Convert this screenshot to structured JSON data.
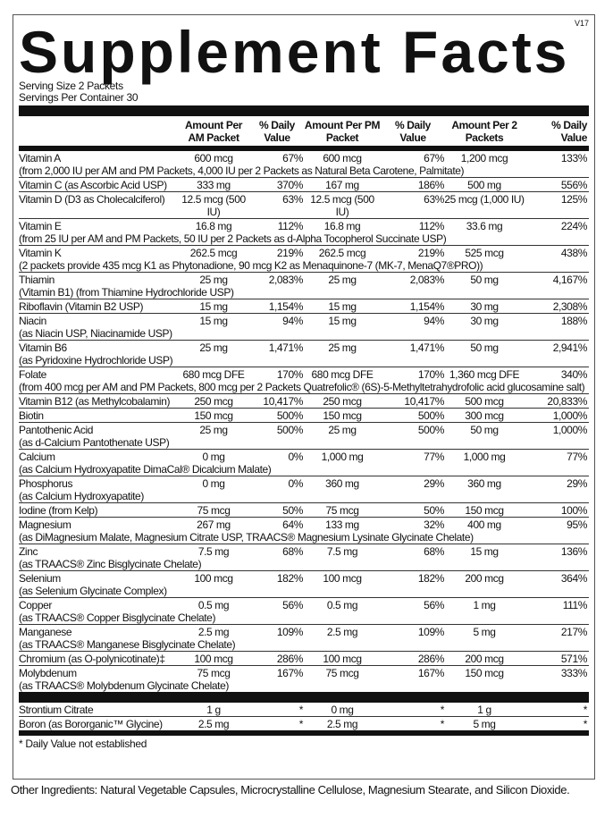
{
  "version": "V17",
  "title": "Supplement Facts",
  "serving_size": "Serving Size 2 Packets",
  "servings_per_container": "Servings Per Container 30",
  "headers": [
    "",
    "Amount Per AM Packet",
    "% Daily Value",
    "Amount Per PM Packet",
    "% Daily Value",
    "Amount Per 2 Packets",
    "% Daily Value"
  ],
  "rows": [
    {
      "name": "Vitamin A",
      "sub": "(from 2,000 IU per AM and PM Packets, 4,000 IU per 2 Packets as Natural Beta Carotene, Palmitate)",
      "v": [
        "600 mcg",
        "67%",
        "600 mcg",
        "67%",
        "1,200 mcg",
        "133%"
      ]
    },
    {
      "name": "Vitamin C (as Ascorbic Acid USP)",
      "sub": "",
      "v": [
        "333 mg",
        "370%",
        "167 mg",
        "186%",
        "500 mg",
        "556%"
      ]
    },
    {
      "name": "Vitamin D (D3 as Cholecalciferol)",
      "sub": "",
      "v": [
        "12.5 mcg (500 IU)",
        "63%",
        "12.5 mcg (500 IU)",
        "63%",
        "25 mcg (1,000 IU)",
        "125%"
      ]
    },
    {
      "name": "Vitamin E",
      "sub": "(from 25 IU per AM and PM Packets, 50 IU per 2 Packets as d-Alpha Tocopherol Succinate USP)",
      "v": [
        "16.8 mg",
        "112%",
        "16.8 mg",
        "112%",
        "33.6 mg",
        "224%"
      ]
    },
    {
      "name": "Vitamin K",
      "sub": "(2 packets provide 435 mcg K1 as Phytonadione, 90 mcg K2 as Menaquinone-7 (MK-7, MenaQ7®PRO))",
      "v": [
        "262.5 mcg",
        "219%",
        "262.5 mcg",
        "219%",
        "525 mcg",
        "438%"
      ]
    },
    {
      "name": "Thiamin",
      "sub": "(Vitamin B1) (from Thiamine Hydrochloride USP)",
      "v": [
        "25 mg",
        "2,083%",
        "25 mg",
        "2,083%",
        "50 mg",
        "4,167%"
      ]
    },
    {
      "name": "Riboflavin (Vitamin B2 USP)",
      "sub": "",
      "v": [
        "15 mg",
        "1,154%",
        "15 mg",
        "1,154%",
        "30 mg",
        "2,308%"
      ]
    },
    {
      "name": "Niacin",
      "sub": "(as Niacin USP, Niacinamide USP)",
      "v": [
        "15 mg",
        "94%",
        "15 mg",
        "94%",
        "30 mg",
        "188%"
      ]
    },
    {
      "name": "Vitamin B6",
      "sub": "(as Pyridoxine Hydrochloride USP)",
      "v": [
        "25 mg",
        "1,471%",
        "25 mg",
        "1,471%",
        "50 mg",
        "2,941%"
      ]
    },
    {
      "name": "Folate",
      "sub": "(from 400 mcg per AM and PM Packets, 800 mcg per 2 Packets Quatrefolic® (6S)-5-Methyltetrahydrofolic acid glucosamine salt)",
      "v": [
        "680 mcg DFE",
        "170%",
        "680 mcg DFE",
        "170%",
        "1,360 mcg DFE",
        "340%"
      ]
    },
    {
      "name": "Vitamin B12 (as Methylcobalamin)",
      "sub": "",
      "v": [
        "250 mcg",
        "10,417%",
        "250 mcg",
        "10,417%",
        "500 mcg",
        "20,833%"
      ]
    },
    {
      "name": "Biotin",
      "sub": "",
      "v": [
        "150 mcg",
        "500%",
        "150 mcg",
        "500%",
        "300 mcg",
        "1,000%"
      ]
    },
    {
      "name": "Pantothenic Acid",
      "sub": "(as d-Calcium Pantothenate USP)",
      "v": [
        "25 mg",
        "500%",
        "25 mg",
        "500%",
        "50 mg",
        "1,000%"
      ]
    },
    {
      "name": "Calcium",
      "sub": "(as Calcium Hydroxyapatite DimaCal® Dicalcium Malate)",
      "v": [
        "0 mg",
        "0%",
        "1,000 mg",
        "77%",
        "1,000 mg",
        "77%"
      ]
    },
    {
      "name": "Phosphorus",
      "sub": "(as Calcium Hydroxyapatite)",
      "v": [
        "0 mg",
        "0%",
        "360 mg",
        "29%",
        "360 mg",
        "29%"
      ]
    },
    {
      "name": "Iodine (from Kelp)",
      "sub": "",
      "v": [
        "75 mcg",
        "50%",
        "75 mcg",
        "50%",
        "150 mcg",
        "100%"
      ]
    },
    {
      "name": "Magnesium",
      "sub": "(as DiMagnesium Malate, Magnesium Citrate USP, TRAACS® Magnesium Lysinate Glycinate Chelate)",
      "v": [
        "267 mg",
        "64%",
        "133 mg",
        "32%",
        "400 mg",
        "95%"
      ]
    },
    {
      "name": "Zinc",
      "sub": "(as TRAACS® Zinc Bisglycinate Chelate)",
      "v": [
        "7.5 mg",
        "68%",
        "7.5 mg",
        "68%",
        "15 mg",
        "136%"
      ]
    },
    {
      "name": "Selenium",
      "sub": "(as Selenium Glycinate Complex)",
      "v": [
        "100 mcg",
        "182%",
        "100 mcg",
        "182%",
        "200 mcg",
        "364%"
      ]
    },
    {
      "name": "Copper",
      "sub": "(as TRAACS® Copper Bisglycinate Chelate)",
      "v": [
        "0.5 mg",
        "56%",
        "0.5 mg",
        "56%",
        "1 mg",
        "111%"
      ]
    },
    {
      "name": "Manganese",
      "sub": "(as TRAACS® Manganese Bisglycinate Chelate)",
      "v": [
        "2.5 mg",
        "109%",
        "2.5 mg",
        "109%",
        "5 mg",
        "217%"
      ]
    },
    {
      "name": "Chromium (as O-polynicotinate)‡",
      "sub": "",
      "v": [
        "100 mcg",
        "286%",
        "100 mcg",
        "286%",
        "200 mcg",
        "571%"
      ]
    },
    {
      "name": "Molybdenum",
      "sub": "(as TRAACS® Molybdenum Glycinate Chelate)",
      "v": [
        "75 mcg",
        "167%",
        "75 mcg",
        "167%",
        "150 mcg",
        "333%"
      ]
    }
  ],
  "other_rows": [
    {
      "name": "Strontium Citrate",
      "v": [
        "1 g",
        "*",
        "0 mg",
        "*",
        "1 g",
        "*"
      ]
    },
    {
      "name": "Boron (as Bororganic™ Glycine)",
      "v": [
        "2.5 mg",
        "*",
        "2.5 mg",
        "*",
        "5 mg",
        "*"
      ]
    }
  ],
  "footnote": "* Daily Value not established",
  "other_ingredients": "Other Ingredients: Natural Vegetable Capsules, Microcrystalline Cellulose, Magnesium Stearate, and Silicon Dioxide."
}
